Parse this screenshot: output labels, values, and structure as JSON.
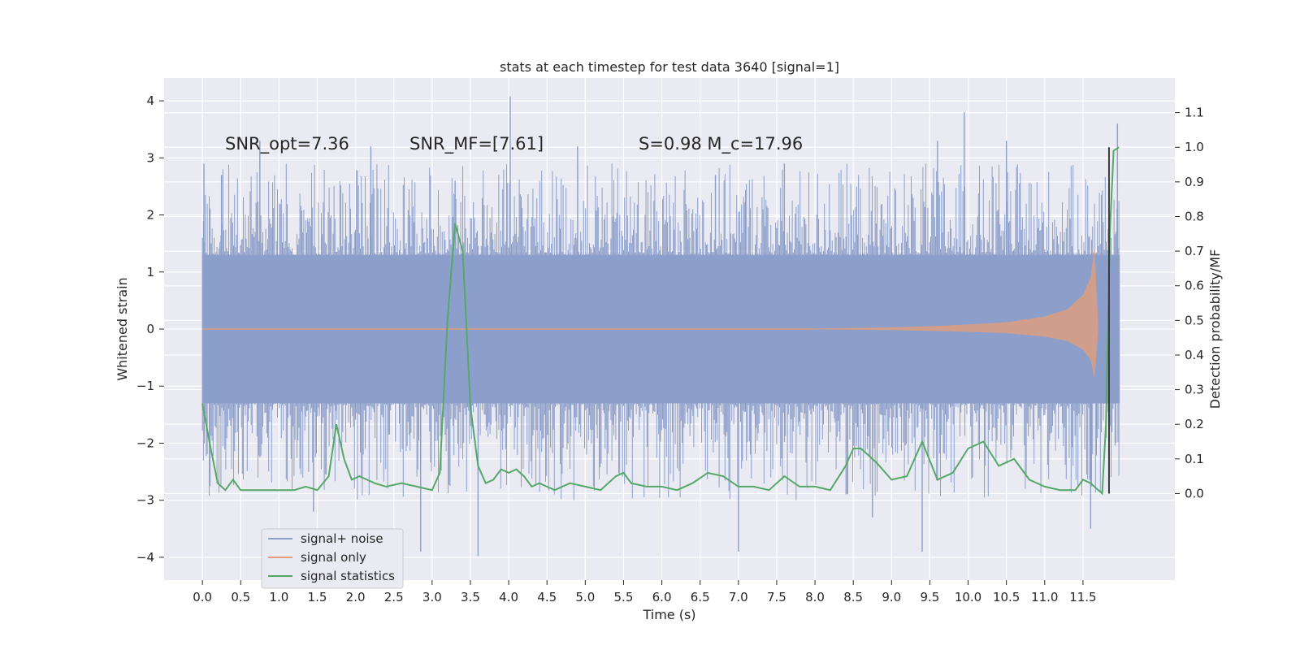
{
  "chart_data": {
    "type": "line",
    "title": "stats at each timestep for test data 3640 [signal=1]",
    "xlabel": "Time (s)",
    "ylabel": "Whitened strain",
    "ylabel_right": "Detection probability/MF",
    "xlim": [
      -0.5,
      12.7
    ],
    "ylim": [
      -4.4,
      4.4
    ],
    "ylim_right": [
      -0.25,
      1.2
    ],
    "x_ticks": [
      "0.0",
      "0.5",
      "1.0",
      "1.5",
      "2.0",
      "2.5",
      "3.0",
      "3.5",
      "4.0",
      "4.5",
      "5.0",
      "5.5",
      "6.0",
      "6.5",
      "7.0",
      "7.5",
      "8.0",
      "8.5",
      "9.0",
      "9.5",
      "10.0",
      "10.5",
      "11.0",
      "11.5"
    ],
    "y_ticks": [
      "4",
      "3",
      "2",
      "1",
      "0",
      "−1",
      "−2",
      "−3",
      "−4"
    ],
    "y_ticks_right": [
      "1.1",
      "1.0",
      "0.9",
      "0.8",
      "0.7",
      "0.6",
      "0.5",
      "0.4",
      "0.3",
      "0.2",
      "0.1",
      "0.0"
    ],
    "grid": true,
    "legend_placement": "lower-left",
    "annotations": [
      {
        "text": "SNR_opt=7.36"
      },
      {
        "text": "SNR_MF=[7.61]"
      },
      {
        "text": "S=0.98   M_c=17.96"
      }
    ],
    "series": [
      {
        "name": "signal+ noise",
        "color": "#8c9fca",
        "axis": "left",
        "x_range": [
          0.0,
          11.98
        ],
        "envelope_upper": 1.3,
        "envelope_lower": -1.3,
        "peak_max": 4.08,
        "peak_min": -3.98,
        "peaks": [
          [
            0.02,
            2.9
          ],
          [
            0.25,
            2.7
          ],
          [
            0.75,
            3.3
          ],
          [
            1.45,
            -3.2
          ],
          [
            2.2,
            3.2
          ],
          [
            2.85,
            -3.9
          ],
          [
            3.3,
            2.6
          ],
          [
            3.6,
            -3.98
          ],
          [
            4.02,
            4.08
          ],
          [
            4.9,
            3.2
          ],
          [
            6.7,
            2.7
          ],
          [
            7.0,
            -3.9
          ],
          [
            7.6,
            2.9
          ],
          [
            8.75,
            -3.3
          ],
          [
            9.4,
            -3.9
          ],
          [
            9.6,
            3.3
          ],
          [
            9.95,
            3.8
          ],
          [
            10.5,
            3.3
          ],
          [
            11.6,
            -3.5
          ],
          [
            11.95,
            3.6
          ]
        ]
      },
      {
        "name": "signal only",
        "color": "#dd9d80",
        "axis": "left",
        "x": [
          8.0,
          8.5,
          9.0,
          9.5,
          10.0,
          10.5,
          11.0,
          11.3,
          11.5,
          11.6,
          11.65,
          11.7
        ],
        "amplitude": [
          0.01,
          0.02,
          0.03,
          0.05,
          0.08,
          0.12,
          0.22,
          0.35,
          0.6,
          0.9,
          1.45,
          0.0
        ]
      },
      {
        "name": "signal statistics",
        "color": "#55a868",
        "axis": "right",
        "x": [
          0.0,
          0.1,
          0.2,
          0.3,
          0.4,
          0.5,
          0.6,
          0.8,
          1.0,
          1.2,
          1.35,
          1.5,
          1.65,
          1.75,
          1.85,
          1.95,
          2.05,
          2.15,
          2.25,
          2.4,
          2.6,
          2.8,
          3.0,
          3.1,
          3.2,
          3.3,
          3.4,
          3.5,
          3.6,
          3.7,
          3.8,
          3.9,
          4.0,
          4.1,
          4.2,
          4.3,
          4.4,
          4.5,
          4.6,
          4.8,
          5.0,
          5.2,
          5.4,
          5.5,
          5.6,
          5.8,
          6.0,
          6.2,
          6.4,
          6.6,
          6.8,
          7.0,
          7.2,
          7.4,
          7.6,
          7.8,
          8.0,
          8.2,
          8.4,
          8.5,
          8.6,
          8.8,
          9.0,
          9.2,
          9.4,
          9.6,
          9.8,
          10.0,
          10.2,
          10.4,
          10.6,
          10.8,
          11.0,
          11.2,
          11.4,
          11.5,
          11.6,
          11.7,
          11.75,
          11.8,
          11.85,
          11.9,
          11.97
        ],
        "y": [
          0.26,
          0.14,
          0.03,
          0.01,
          0.04,
          0.01,
          0.01,
          0.01,
          0.01,
          0.01,
          0.02,
          0.01,
          0.05,
          0.2,
          0.1,
          0.04,
          0.05,
          0.04,
          0.03,
          0.02,
          0.03,
          0.02,
          0.01,
          0.06,
          0.5,
          0.78,
          0.7,
          0.25,
          0.08,
          0.03,
          0.04,
          0.07,
          0.06,
          0.07,
          0.05,
          0.02,
          0.03,
          0.02,
          0.01,
          0.03,
          0.02,
          0.01,
          0.05,
          0.06,
          0.03,
          0.02,
          0.02,
          0.01,
          0.03,
          0.06,
          0.05,
          0.02,
          0.02,
          0.01,
          0.05,
          0.02,
          0.02,
          0.01,
          0.08,
          0.13,
          0.13,
          0.09,
          0.04,
          0.05,
          0.15,
          0.04,
          0.06,
          0.13,
          0.15,
          0.08,
          0.1,
          0.04,
          0.02,
          0.01,
          0.01,
          0.04,
          0.03,
          0.01,
          0.0,
          0.2,
          0.75,
          0.99,
          1.0
        ]
      }
    ],
    "vertical_marker_x": 11.84
  }
}
